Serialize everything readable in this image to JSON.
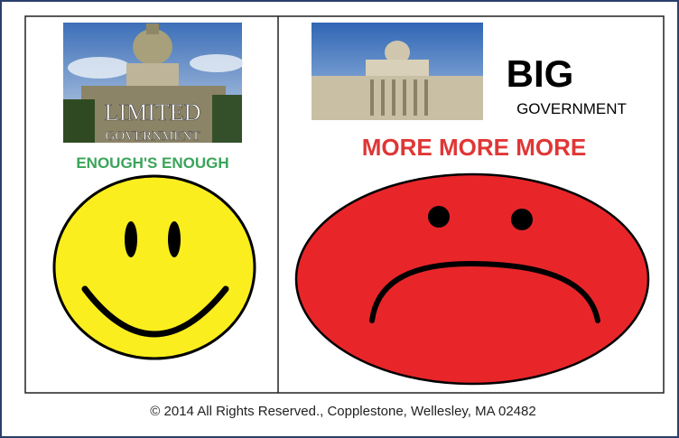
{
  "left": {
    "image_title": "LIMITED",
    "image_subtitle": "GOVERNMENT",
    "slogan": "ENOUGH'S ENOUGH"
  },
  "right": {
    "title": "BIG",
    "subtitle": "GOVERNMENT",
    "slogan": "MORE MORE MORE"
  },
  "footer": "© 2014 All Rights Reserved., Copplestone, Wellesley, MA 02482"
}
